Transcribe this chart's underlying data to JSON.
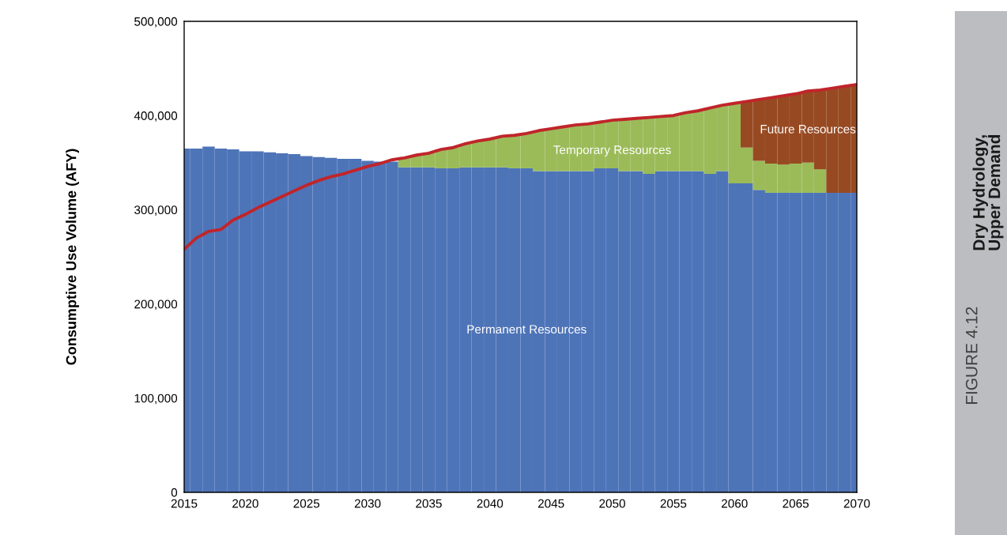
{
  "chart_data": {
    "type": "bar",
    "stacked": true,
    "title": "Dry Hydrology,\nUpper Demand",
    "subtitle": "FIGURE 4.12",
    "ylabel": "Consumptive Use Volume (AFY)",
    "x": [
      2015,
      2016,
      2017,
      2018,
      2019,
      2020,
      2021,
      2022,
      2023,
      2024,
      2025,
      2026,
      2027,
      2028,
      2029,
      2030,
      2031,
      2032,
      2033,
      2034,
      2035,
      2036,
      2037,
      2038,
      2039,
      2040,
      2041,
      2042,
      2043,
      2044,
      2045,
      2046,
      2047,
      2048,
      2049,
      2050,
      2051,
      2052,
      2053,
      2054,
      2055,
      2056,
      2057,
      2058,
      2059,
      2060,
      2061,
      2062,
      2063,
      2064,
      2065,
      2066,
      2067,
      2068,
      2069,
      2070
    ],
    "xlim": [
      2015,
      2070
    ],
    "xticks": [
      2015,
      2020,
      2025,
      2030,
      2035,
      2040,
      2045,
      2050,
      2055,
      2060,
      2065,
      2070
    ],
    "ylim": [
      0,
      500000
    ],
    "yticks": [
      {
        "value": 0,
        "label": "0"
      },
      {
        "value": 100000,
        "label": "100,000"
      },
      {
        "value": 200000,
        "label": "200,000"
      },
      {
        "value": 300000,
        "label": "300,000"
      },
      {
        "value": 400000,
        "label": "400,000"
      },
      {
        "value": 500000,
        "label": "500,000"
      }
    ],
    "grid": false,
    "legend": false,
    "series": [
      {
        "name": "Permanent Resources",
        "color": "#4e74b8",
        "values": [
          365000,
          365000,
          367000,
          365000,
          364000,
          362000,
          362000,
          361000,
          360000,
          359000,
          357000,
          356000,
          355000,
          354000,
          354000,
          352000,
          351000,
          351000,
          345000,
          345000,
          345000,
          344000,
          344000,
          345000,
          345000,
          345000,
          345000,
          344000,
          344000,
          341000,
          341000,
          341000,
          341000,
          341000,
          344000,
          344000,
          341000,
          341000,
          338000,
          341000,
          341000,
          341000,
          341000,
          338000,
          341000,
          328000,
          328000,
          321000,
          318000,
          318000,
          318000,
          318000,
          318000,
          318000,
          318000,
          318000
        ]
      },
      {
        "name": "Temporary Resources",
        "color": "#9bbb59",
        "values": [
          0,
          0,
          0,
          0,
          0,
          0,
          0,
          0,
          0,
          0,
          0,
          0,
          0,
          0,
          0,
          0,
          0,
          0,
          10000,
          13000,
          15000,
          20000,
          22000,
          25000,
          28000,
          30000,
          33000,
          35000,
          37000,
          43000,
          45000,
          47000,
          49000,
          50000,
          49000,
          51000,
          55000,
          56000,
          60000,
          58000,
          59000,
          62000,
          64000,
          70000,
          70000,
          85000,
          38000,
          31000,
          31000,
          30000,
          31000,
          32000,
          25000,
          0,
          0,
          0
        ]
      },
      {
        "name": "Future Resources",
        "color": "#974a22",
        "values": [
          0,
          0,
          0,
          0,
          0,
          0,
          0,
          0,
          0,
          0,
          0,
          0,
          0,
          0,
          0,
          0,
          0,
          0,
          0,
          0,
          0,
          0,
          0,
          0,
          0,
          0,
          0,
          0,
          0,
          0,
          0,
          0,
          0,
          0,
          0,
          0,
          0,
          0,
          0,
          0,
          0,
          0,
          0,
          0,
          0,
          0,
          49000,
          65000,
          70000,
          73000,
          74000,
          76000,
          84000,
          111000,
          113000,
          115000
        ]
      },
      {
        "type": "line",
        "color": "#c0252a",
        "values": [
          258000,
          270000,
          277000,
          279000,
          289000,
          295000,
          302000,
          308000,
          314000,
          320000,
          326000,
          331000,
          335000,
          338000,
          342000,
          346000,
          349000,
          353000,
          355000,
          358000,
          360000,
          364000,
          366000,
          370000,
          373000,
          375000,
          378000,
          379000,
          381000,
          384000,
          386000,
          388000,
          390000,
          391000,
          393000,
          395000,
          396000,
          397000,
          398000,
          399000,
          400000,
          403000,
          405000,
          408000,
          411000,
          413000,
          415000,
          417000,
          419000,
          421000,
          423000,
          426000,
          427000,
          429000,
          431000,
          433000
        ]
      }
    ]
  }
}
